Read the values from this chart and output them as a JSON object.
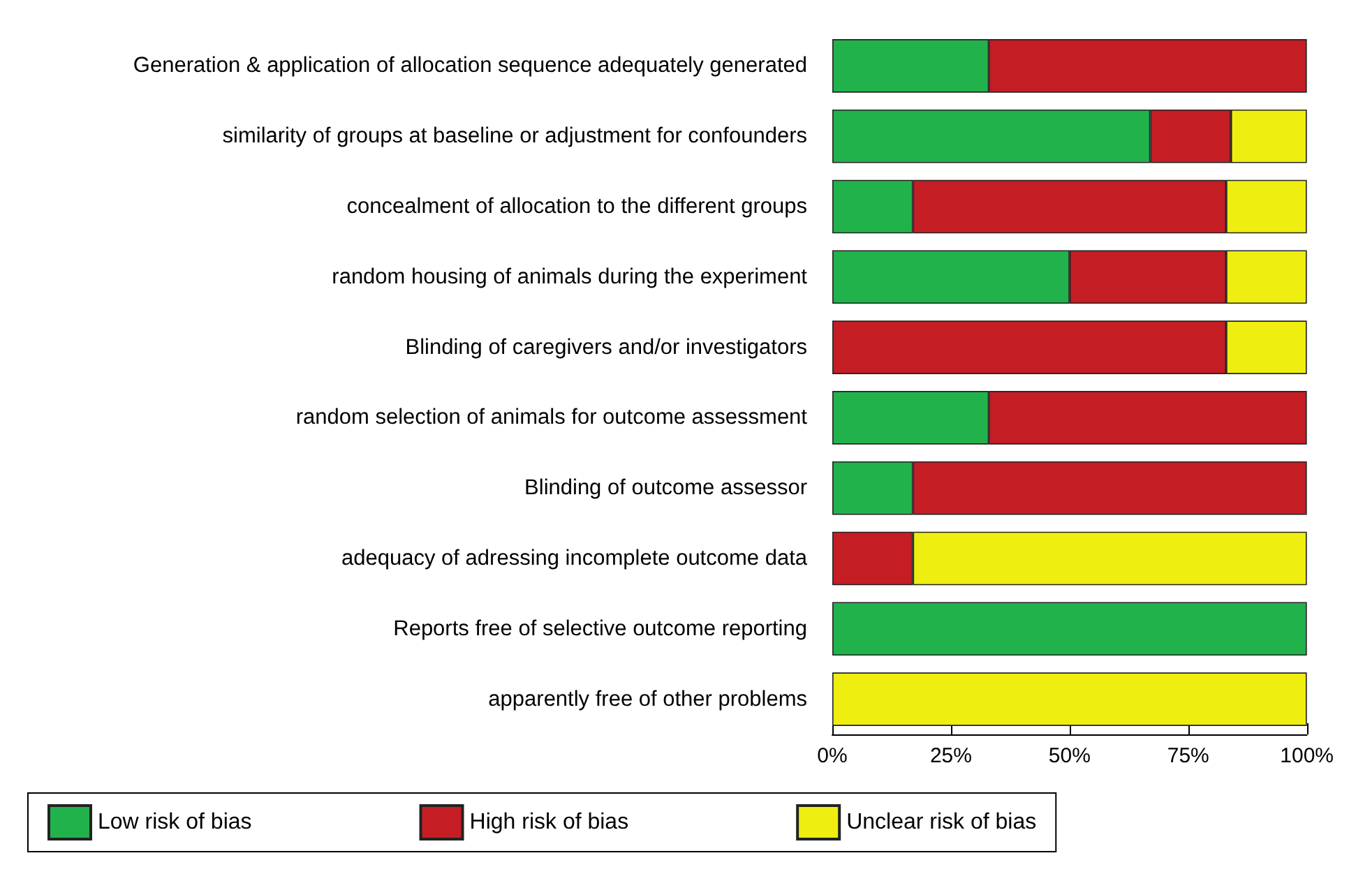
{
  "chart_data": {
    "type": "bar",
    "orientation": "horizontal",
    "stacked": true,
    "categories": [
      "Generation & application of allocation sequence adequately generated",
      "similarity of groups at baseline or adjustment for confounders",
      "concealment of allocation to the different groups",
      "random housing of animals during the experiment",
      "Blinding of caregivers and/or investigators",
      "random selection of animals for outcome assessment",
      "Blinding of outcome assessor",
      "adequacy of adressing incomplete outcome data",
      "Reports free of selective outcome reporting",
      "apparently free of other problems"
    ],
    "series": [
      {
        "name": "Low risk of bias",
        "color": "#22b24c",
        "values": [
          33,
          67,
          17,
          50,
          null,
          33,
          17,
          null,
          100,
          null
        ]
      },
      {
        "name": "High risk of bias",
        "color": "#c41e24",
        "values": [
          67,
          17,
          66,
          33,
          83,
          67,
          83,
          17,
          null,
          null
        ]
      },
      {
        "name": "Unclear risk of bias",
        "color": "#eeee10",
        "values": [
          null,
          16,
          17,
          17,
          17,
          null,
          null,
          83,
          null,
          100
        ]
      }
    ],
    "xlim": [
      0,
      100
    ],
    "xticks": [
      {
        "value": 0,
        "label": "0%"
      },
      {
        "value": 25,
        "label": "25%"
      },
      {
        "value": 50,
        "label": "50%"
      },
      {
        "value": 75,
        "label": "75%"
      },
      {
        "value": 100,
        "label": "100%"
      }
    ],
    "grid": false,
    "legend": "bottom"
  }
}
